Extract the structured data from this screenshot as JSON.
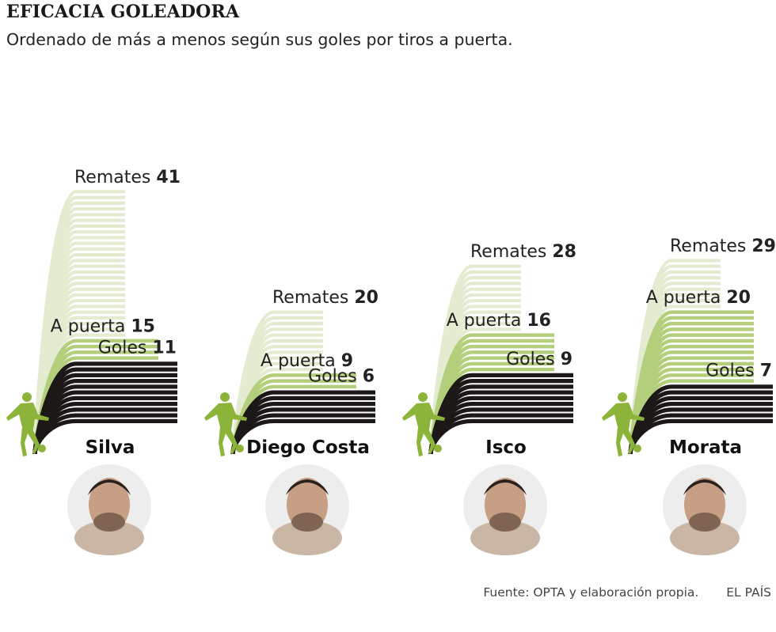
{
  "title": "EFICACIA GOLEADORA",
  "subtitle": "Ordenado de más a menos según sus goles por tiros a puerta.",
  "footer": {
    "source": "Fuente: OPTA y elaboración propia.",
    "brand": "EL PAÍS"
  },
  "colors": {
    "remates": "#e3ecd0",
    "a_puerta": "#b4cf7c",
    "goles": "#1c1817",
    "figure": "#8cb33a"
  },
  "chart_data": {
    "type": "bar",
    "title": "EFICACIA GOLEADORA",
    "subtitle": "Ordenado de más a menos según sus goles por tiros a puerta.",
    "categories": [
      "Silva",
      "Diego Costa",
      "Isco",
      "Morata"
    ],
    "series": [
      {
        "name": "Remates",
        "values": [
          41,
          20,
          28,
          29
        ]
      },
      {
        "name": "A puerta",
        "values": [
          15,
          9,
          16,
          20
        ]
      },
      {
        "name": "Goles",
        "values": [
          11,
          6,
          9,
          7
        ]
      }
    ]
  }
}
